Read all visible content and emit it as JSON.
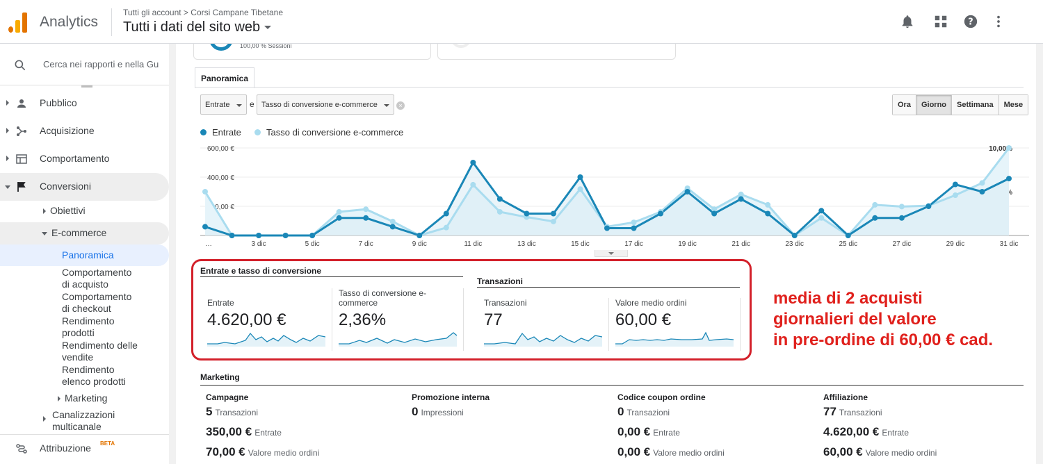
{
  "header": {
    "app_name": "Analytics",
    "breadcrumb": "Tutti gli account > Corsi Campane Tibetane",
    "property": "Tutti i dati del sito web"
  },
  "sidebar": {
    "search_placeholder": "Cerca nei rapporti e nella Gu",
    "items": [
      {
        "label": "Pubblico",
        "icon": "person-icon"
      },
      {
        "label": "Acquisizione",
        "icon": "acquisition-icon"
      },
      {
        "label": "Comportamento",
        "icon": "behavior-icon"
      },
      {
        "label": "Conversioni",
        "icon": "flag-icon"
      }
    ],
    "sub": {
      "obiettivi": "Obiettivi",
      "ecommerce": "E-commerce",
      "panoramica": "Panoramica",
      "comp_acquisto_1": "Comportamento",
      "comp_acquisto_2": "di acquisto",
      "comp_checkout_1": "Comportamento",
      "comp_checkout_2": "di checkout",
      "rend_prodotti_1": "Rendimento",
      "rend_prodotti_2": "prodotti",
      "rend_vendite_1": "Rendimento delle",
      "rend_vendite_2": "vendite",
      "rend_elenco_1": "Rendimento",
      "rend_elenco_2": "elenco prodotti",
      "marketing": "Marketing",
      "canal_1": "Canalizzazioni",
      "canal_2": "multicanale",
      "attribuzione": "Attribuzione",
      "beta": "BETA"
    }
  },
  "top_card": {
    "text": "100,00 % Sessioni"
  },
  "tab": "Panoramica",
  "controls": {
    "metric1": "Entrate",
    "and": "e",
    "metric2": "Tasso di conversione e-commerce",
    "periods": [
      "Ora",
      "Giorno",
      "Settimana",
      "Mese"
    ],
    "active_period": "Giorno"
  },
  "legend": {
    "s1": "Entrate",
    "s2": "Tasso di conversione e-commerce"
  },
  "colors": {
    "series1": "#1a87b7",
    "series2": "#a9dcef",
    "accent": "#d3202a"
  },
  "chart_data": {
    "type": "line",
    "x": [
      "1 dic",
      "2 dic",
      "3 dic",
      "4 dic",
      "5 dic",
      "6 dic",
      "7 dic",
      "8 dic",
      "9 dic",
      "10 dic",
      "11 dic",
      "12 dic",
      "13 dic",
      "14 dic",
      "15 dic",
      "16 dic",
      "17 dic",
      "18 dic",
      "19 dic",
      "20 dic",
      "21 dic",
      "22 dic",
      "23 dic",
      "24 dic",
      "25 dic",
      "26 dic",
      "27 dic",
      "28 dic",
      "29 dic",
      "30 dic",
      "31 dic"
    ],
    "xticks": [
      "…",
      "3 dic",
      "5 dic",
      "7 dic",
      "9 dic",
      "11 dic",
      "13 dic",
      "15 dic",
      "17 dic",
      "19 dic",
      "21 dic",
      "23 dic",
      "25 dic",
      "27 dic",
      "29 dic",
      "31 dic"
    ],
    "y_left_ticks": [
      "600,00 €",
      "400,00 €",
      "200,00 €"
    ],
    "y_right_ticks": [
      "10,00%",
      "5,00%"
    ],
    "ylim_left": [
      0,
      600
    ],
    "ylim_right": [
      0,
      10
    ],
    "series": [
      {
        "name": "Entrate",
        "axis": "left",
        "values": [
          60,
          0,
          0,
          0,
          0,
          120,
          120,
          60,
          0,
          150,
          500,
          250,
          150,
          150,
          400,
          50,
          50,
          150,
          300,
          150,
          250,
          150,
          0,
          170,
          0,
          120,
          120,
          200,
          350,
          300,
          390
        ]
      },
      {
        "name": "Tasso di conversione e-commerce",
        "axis": "right",
        "values": [
          5.0,
          0,
          0,
          0,
          0,
          2.7,
          3.0,
          1.6,
          0,
          0.9,
          5.8,
          2.7,
          2.1,
          1.6,
          5.3,
          1.0,
          1.5,
          2.7,
          5.4,
          3.0,
          4.7,
          3.5,
          0,
          2.0,
          0,
          3.5,
          3.3,
          3.4,
          4.6,
          6.0,
          10.0
        ]
      }
    ]
  },
  "metrics": {
    "group1": "Entrate e tasso di conversione",
    "group2": "Transazioni",
    "cells": [
      {
        "title": "Entrate",
        "value": "4.620,00 €"
      },
      {
        "title": "Tasso di conversione e-commerce",
        "value": "2,36%"
      },
      {
        "title": "Transazioni",
        "value": "77"
      },
      {
        "title": "Valore medio ordini",
        "value": "60,00 €"
      }
    ]
  },
  "annotation": {
    "l1": "media di 2 acquisti",
    "l2": "giornalieri del valore",
    "l3": "in pre-ordine di 60,00 € cad."
  },
  "marketing": {
    "title": "Marketing",
    "cols": [
      {
        "h": "Campagne",
        "rows": [
          {
            "v": "5",
            "l": "Transazioni"
          },
          {
            "v": "350,00 €",
            "l": "Entrate"
          },
          {
            "v": "70,00 €",
            "l": "Valore medio ordini"
          }
        ]
      },
      {
        "h": "Promozione interna",
        "rows": [
          {
            "v": "0",
            "l": "Impressioni"
          }
        ]
      },
      {
        "h": "Codice coupon ordine",
        "rows": [
          {
            "v": "0",
            "l": "Transazioni"
          },
          {
            "v": "0,00 €",
            "l": "Entrate"
          },
          {
            "v": "0,00 €",
            "l": "Valore medio ordini"
          }
        ]
      },
      {
        "h": "Affiliazione",
        "rows": [
          {
            "v": "77",
            "l": "Transazioni"
          },
          {
            "v": "4.620,00 €",
            "l": "Entrate"
          },
          {
            "v": "60,00 €",
            "l": "Valore medio ordini"
          }
        ]
      }
    ]
  }
}
